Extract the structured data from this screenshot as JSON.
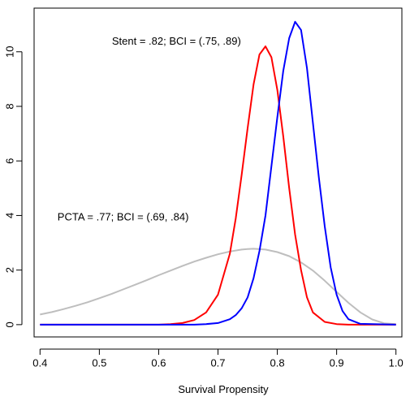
{
  "chart_data": {
    "type": "line",
    "title": "",
    "xlabel": "Survival Propensity",
    "ylabel": "",
    "xlim": [
      0.39,
      1.01
    ],
    "ylim": [
      -0.45,
      11.6
    ],
    "x_ticks": [
      0.4,
      0.5,
      0.6,
      0.7,
      0.8,
      0.9,
      1.0
    ],
    "x_tick_labels": [
      "0.4",
      "0.5",
      "0.6",
      "0.7",
      "0.8",
      "0.9",
      "1.0"
    ],
    "y_ticks": [
      0,
      2,
      4,
      6,
      8,
      10
    ],
    "y_tick_labels": [
      "0",
      "2",
      "4",
      "6",
      "8",
      "10"
    ],
    "grid": false,
    "series": [
      {
        "color": "#bebebe",
        "x": [
          0.4,
          0.42,
          0.44,
          0.46,
          0.48,
          0.5,
          0.52,
          0.54,
          0.56,
          0.58,
          0.6,
          0.62,
          0.64,
          0.66,
          0.68,
          0.7,
          0.72,
          0.74,
          0.75,
          0.76,
          0.78,
          0.8,
          0.82,
          0.84,
          0.86,
          0.88,
          0.9,
          0.92,
          0.94,
          0.96,
          0.98,
          1.0
        ],
        "y": [
          0.37,
          0.46,
          0.57,
          0.69,
          0.82,
          0.97,
          1.12,
          1.29,
          1.46,
          1.63,
          1.81,
          1.98,
          2.15,
          2.31,
          2.45,
          2.58,
          2.68,
          2.75,
          2.77,
          2.78,
          2.75,
          2.66,
          2.51,
          2.28,
          1.98,
          1.61,
          1.2,
          0.8,
          0.45,
          0.19,
          0.05,
          0.02
        ]
      },
      {
        "color": "#ff0000",
        "x": [
          0.4,
          0.6,
          0.62,
          0.64,
          0.66,
          0.68,
          0.7,
          0.72,
          0.73,
          0.74,
          0.75,
          0.76,
          0.77,
          0.78,
          0.79,
          0.8,
          0.81,
          0.82,
          0.83,
          0.84,
          0.85,
          0.86,
          0.88,
          0.9,
          0.92,
          1.0
        ],
        "y": [
          0,
          0,
          0.02,
          0.06,
          0.17,
          0.45,
          1.1,
          2.6,
          3.9,
          5.5,
          7.2,
          8.8,
          9.9,
          10.2,
          9.8,
          8.6,
          6.9,
          5.0,
          3.3,
          2.0,
          1.0,
          0.45,
          0.1,
          0.02,
          0,
          0
        ]
      },
      {
        "color": "#0000ff",
        "x": [
          0.4,
          0.66,
          0.68,
          0.7,
          0.72,
          0.73,
          0.74,
          0.75,
          0.76,
          0.77,
          0.78,
          0.79,
          0.8,
          0.81,
          0.82,
          0.83,
          0.84,
          0.85,
          0.86,
          0.87,
          0.88,
          0.89,
          0.9,
          0.91,
          0.92,
          0.94,
          1.0
        ],
        "y": [
          0,
          0,
          0.02,
          0.06,
          0.2,
          0.35,
          0.6,
          1.0,
          1.7,
          2.7,
          4.0,
          5.8,
          7.6,
          9.3,
          10.5,
          11.1,
          10.8,
          9.4,
          7.4,
          5.4,
          3.6,
          2.1,
          1.1,
          0.5,
          0.2,
          0.03,
          0
        ]
      }
    ],
    "annotations": [
      {
        "text": "Stent = .82; BCI = (.75, .89)",
        "x": 0.63,
        "y": 10.4
      },
      {
        "text": "PCTA = .77; BCI = (.69, .84)",
        "x": 0.54,
        "y": 3.95
      }
    ]
  }
}
